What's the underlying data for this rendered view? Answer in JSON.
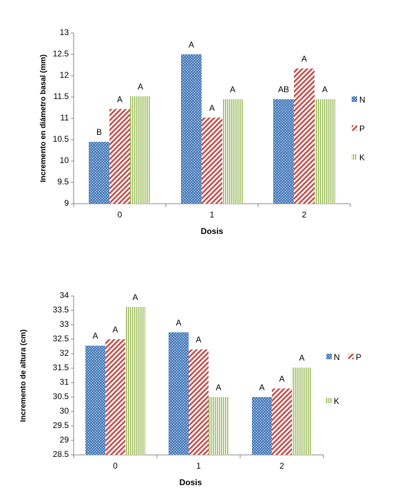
{
  "colors": {
    "N": "#4f81bd",
    "P": "#c0504d",
    "K": "#9bbb59"
  },
  "chart_data": [
    {
      "type": "bar",
      "categories": [
        "0",
        "1",
        "2"
      ],
      "series": [
        {
          "name": "N",
          "values": [
            10.45,
            12.5,
            11.45
          ],
          "labels": [
            "B",
            "A",
            "AB"
          ]
        },
        {
          "name": "P",
          "values": [
            11.22,
            11.02,
            12.17
          ],
          "labels": [
            "A",
            "A",
            "A"
          ]
        },
        {
          "name": "K",
          "values": [
            11.52,
            11.45,
            11.45
          ],
          "labels": [
            "A",
            "A",
            "A"
          ]
        }
      ],
      "title": "",
      "xlabel": "Dosis",
      "ylabel": "Incremento en diámetro basal (mm)",
      "ylim": [
        9,
        13
      ],
      "yticks": [
        "9",
        "9.5",
        "10",
        "10.5",
        "11",
        "11.5",
        "12",
        "12.5",
        "13"
      ],
      "legend": "right-vertical",
      "grid": false
    },
    {
      "type": "bar",
      "categories": [
        "0",
        "1",
        "2"
      ],
      "series": [
        {
          "name": "N",
          "values": [
            32.28,
            32.74,
            30.5
          ],
          "labels": [
            "A",
            "A",
            "A"
          ]
        },
        {
          "name": "P",
          "values": [
            32.5,
            32.15,
            30.8
          ],
          "labels": [
            "A",
            "A",
            "A"
          ]
        },
        {
          "name": "K",
          "values": [
            33.62,
            30.5,
            31.52
          ],
          "labels": [
            "A",
            "A",
            "A"
          ]
        }
      ],
      "title": "",
      "xlabel": "Dosis",
      "ylabel": "Incremento de altura (cm)",
      "ylim": [
        28.5,
        34
      ],
      "yticks": [
        "28.5",
        "29",
        "29.5",
        "30",
        "30.5",
        "31",
        "31.5",
        "32",
        "32.5",
        "33",
        "33.5",
        "34"
      ],
      "legend": "right",
      "grid": false
    }
  ]
}
